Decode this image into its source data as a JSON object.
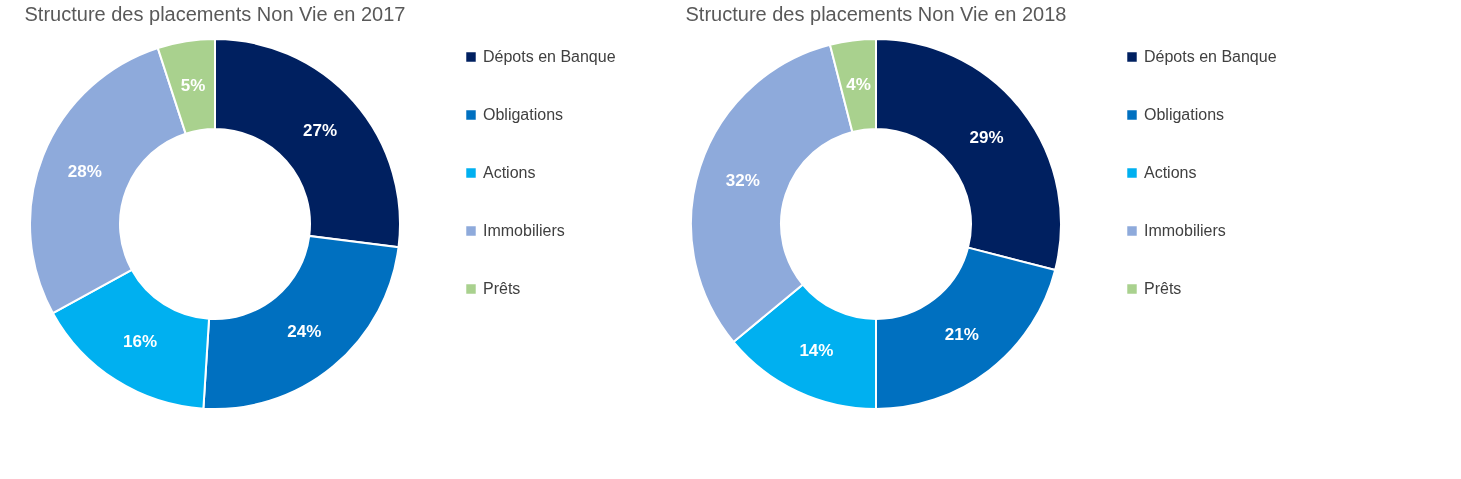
{
  "chart_data": [
    {
      "type": "donut",
      "title": "Structure des placements Non Vie en 2017",
      "categories": [
        "Dépots en Banque",
        "Obligations",
        "Actions",
        "Immobiliers",
        "Prêts"
      ],
      "values": [
        27,
        24,
        16,
        28,
        5
      ],
      "colors": [
        "#002060",
        "#0070c0",
        "#00b0f0",
        "#8eaadb",
        "#a9d18e"
      ],
      "value_labels": [
        "27%",
        "24%",
        "16%",
        "28%",
        "5%"
      ],
      "legend": "right"
    },
    {
      "type": "donut",
      "title": "Structure des placements Non Vie en 2018",
      "categories": [
        "Dépots en Banque",
        "Obligations",
        "Actions",
        "Immobiliers",
        "Prêts"
      ],
      "values": [
        29,
        21,
        14,
        32,
        4
      ],
      "colors": [
        "#002060",
        "#0070c0",
        "#00b0f0",
        "#8eaadb",
        "#a9d18e"
      ],
      "value_labels": [
        "29%",
        "21%",
        "14%",
        "32%",
        "4%"
      ],
      "legend": "right"
    }
  ]
}
